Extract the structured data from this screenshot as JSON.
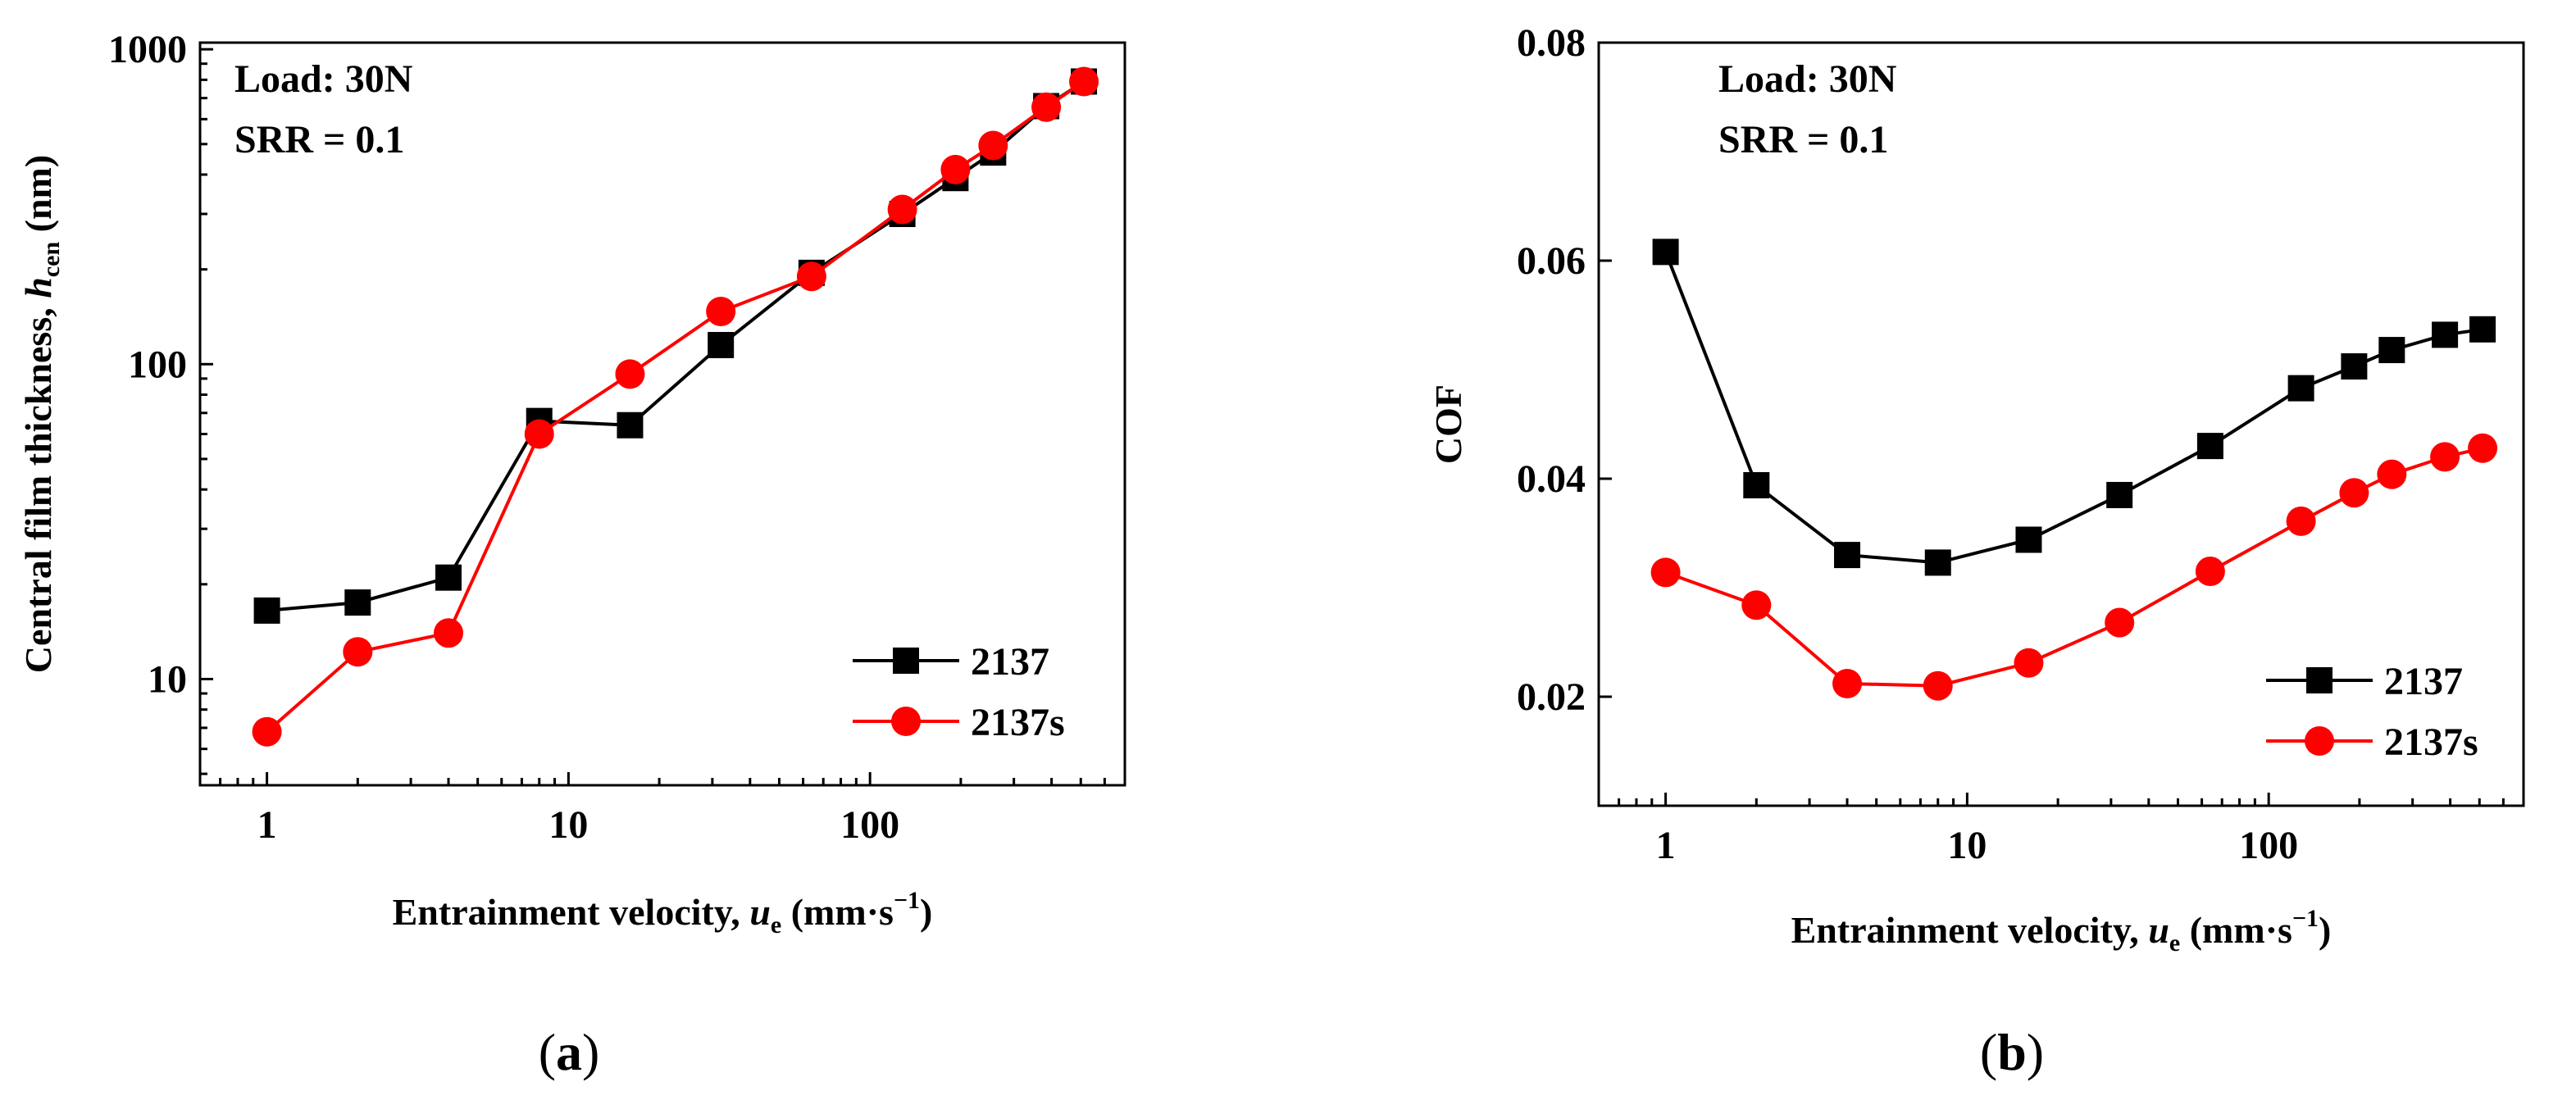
{
  "chart_data": [
    {
      "type": "line",
      "panel_label": "a",
      "annotations": [
        "Load: 30N",
        "SRR = 0.1"
      ],
      "xlabel": {
        "main": "Entrainment velocity, ",
        "var": "u",
        "sub": "e",
        "unit_open": " (mm·s",
        "unit_sup": "−1",
        "unit_close": ")"
      },
      "ylabel": {
        "main": "Central film thickness, ",
        "var": "h",
        "sub": "cen",
        "unit": " (nm)"
      },
      "xscale": "log",
      "yscale": "log",
      "xlim": [
        0.6,
        700
      ],
      "ylim": [
        4.6,
        1050
      ],
      "x_ticks": [
        1,
        10,
        100
      ],
      "x_tick_labels": [
        "1",
        "10",
        "100"
      ],
      "y_ticks": [
        10,
        100,
        1000
      ],
      "y_tick_labels": [
        "10",
        "100",
        "1000"
      ],
      "legend_position": "bottom-right",
      "series": [
        {
          "name": "2137",
          "marker": "square",
          "color": "#000000",
          "x": [
            1,
            2,
            4,
            8,
            16,
            32,
            64,
            128,
            192,
            256,
            384,
            512
          ],
          "values": [
            16.5,
            17.5,
            21,
            66,
            64,
            115,
            195,
            300,
            390,
            470,
            660,
            790
          ]
        },
        {
          "name": "2137s",
          "marker": "circle",
          "color": "#ff0000",
          "x": [
            1,
            2,
            4,
            8,
            16,
            32,
            64,
            128,
            192,
            256,
            384,
            512
          ],
          "values": [
            6.8,
            12.2,
            14,
            60,
            93,
            147,
            190,
            310,
            415,
            495,
            655,
            790
          ]
        }
      ]
    },
    {
      "type": "line",
      "panel_label": "b",
      "annotations": [
        "Load: 30N",
        "SRR = 0.1"
      ],
      "xlabel": {
        "main": "Entrainment velocity, ",
        "var": "u",
        "sub": "e",
        "unit_open": " (mm·s",
        "unit_sup": "−1",
        "unit_close": ")"
      },
      "ylabel": {
        "main": "COF"
      },
      "xscale": "log",
      "yscale": "linear",
      "xlim": [
        0.6,
        700
      ],
      "ylim": [
        0.01,
        0.08
      ],
      "x_ticks": [
        1,
        10,
        100
      ],
      "x_tick_labels": [
        "1",
        "10",
        "100"
      ],
      "y_ticks": [
        0.02,
        0.04,
        0.06,
        0.08
      ],
      "y_tick_labels": [
        "0.02",
        "0.04",
        "0.06",
        "0.08"
      ],
      "legend_position": "bottom-right",
      "series": [
        {
          "name": "2137",
          "marker": "square",
          "color": "#000000",
          "x": [
            1,
            2,
            4,
            8,
            16,
            32,
            64,
            128,
            192,
            256,
            384,
            512
          ],
          "values": [
            0.0608,
            0.0394,
            0.033,
            0.0323,
            0.0344,
            0.0385,
            0.043,
            0.0483,
            0.0503,
            0.0518,
            0.0532,
            0.0537
          ]
        },
        {
          "name": "2137s",
          "marker": "circle",
          "color": "#ff0000",
          "x": [
            1,
            2,
            4,
            8,
            16,
            32,
            64,
            128,
            192,
            256,
            384,
            512
          ],
          "values": [
            0.0314,
            0.0284,
            0.0212,
            0.021,
            0.0231,
            0.0268,
            0.0315,
            0.0361,
            0.0387,
            0.0404,
            0.042,
            0.0428
          ]
        }
      ]
    }
  ]
}
